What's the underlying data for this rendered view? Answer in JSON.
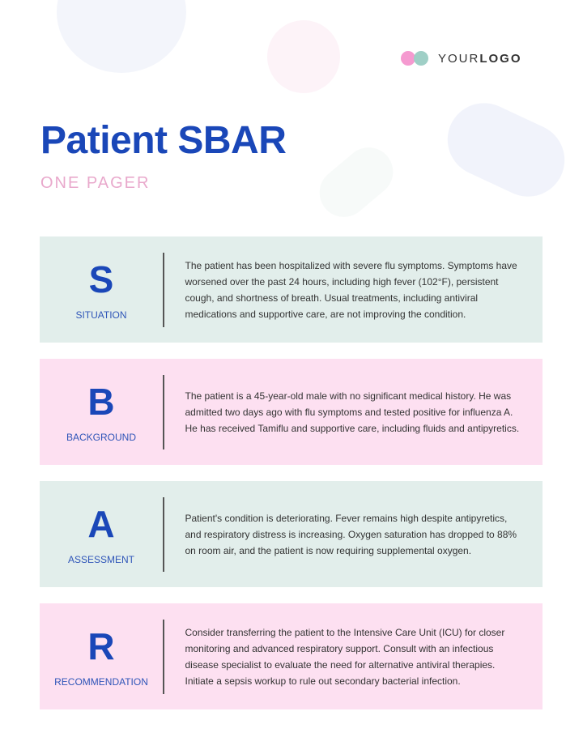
{
  "logo": {
    "text_light": "YOUR",
    "text_bold": "LOGO",
    "colors": [
      "#f59ad0",
      "#9fcfc6"
    ]
  },
  "header": {
    "title": "Patient SBAR",
    "subtitle": "ONE PAGER"
  },
  "colors": {
    "accent": "#1a47b8",
    "teal_card": "#e2eeeb",
    "pink_card": "#fde0f1",
    "subtitle": "#e9a9cc"
  },
  "sections": [
    {
      "letter": "S",
      "label": "SITUATION",
      "text": "The patient has been hospitalized with severe flu symptoms. Symptoms have worsened over the past 24 hours, including high fever (102°F), persistent cough, and shortness of breath. Usual treatments, including antiviral medications and supportive care, are not improving the condition."
    },
    {
      "letter": "B",
      "label": "BACKGROUND",
      "text": "The patient is a 45-year-old male with no significant medical history. He was admitted two days ago with flu symptoms and tested positive for influenza A. He has received Tamiflu and supportive care, including fluids and antipyretics."
    },
    {
      "letter": "A",
      "label": "ASSESSMENT",
      "text": "Patient's condition is deteriorating. Fever remains high despite antipyretics, and respiratory distress is increasing. Oxygen saturation has dropped to 88% on room air, and the patient is now requiring supplemental oxygen."
    },
    {
      "letter": "R",
      "label": "RECOMMENDATION",
      "text": "Consider transferring the patient to the Intensive Care Unit (ICU) for closer monitoring and advanced respiratory support. Consult with an infectious disease specialist to evaluate the need for alternative antiviral therapies. Initiate a sepsis workup to rule out secondary bacterial infection."
    }
  ]
}
